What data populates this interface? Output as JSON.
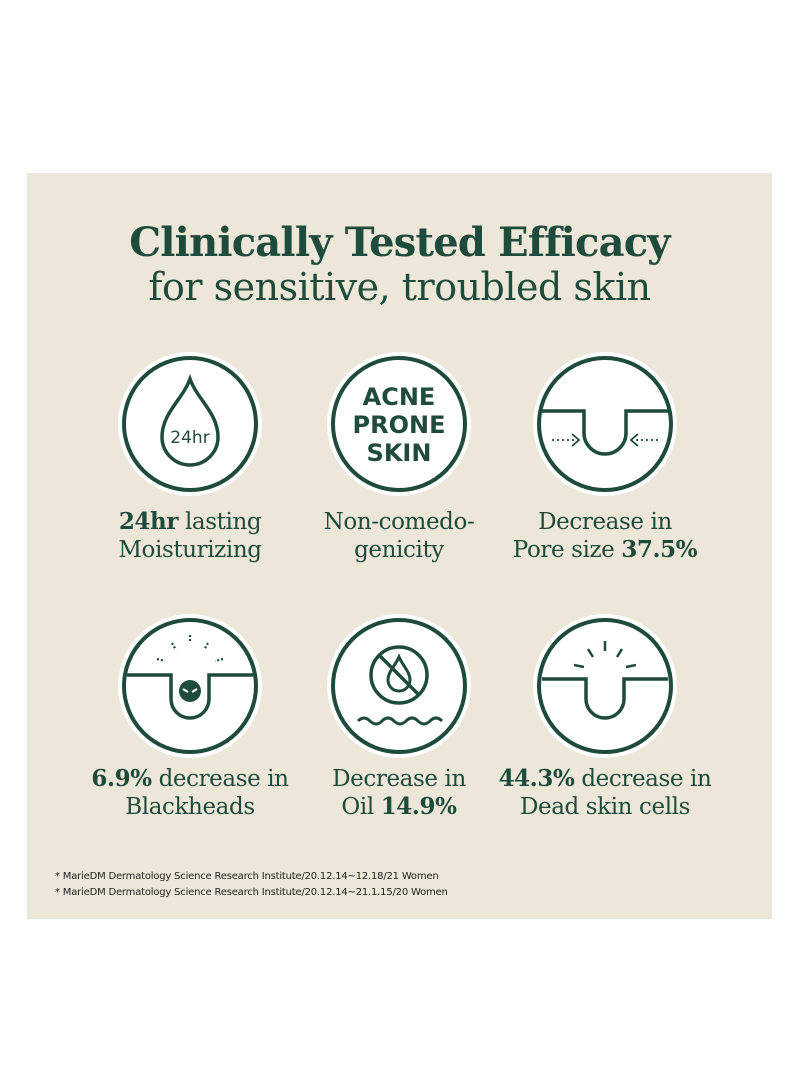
{
  "heading": {
    "line1": "Clinically Tested Efficacy",
    "line2": "for sensitive, troubled skin"
  },
  "colors": {
    "panel": "#ede7d9",
    "accent": "#1e4b3b",
    "icon_fill": "#ffffff"
  },
  "features": [
    {
      "icon": "water-drop-icon",
      "icon_text": "24hr",
      "caption_line1_bold": "24hr",
      "caption_line1_rest": " lasting",
      "caption_line2": "Moisturizing"
    },
    {
      "icon": "acne-prone-skin-icon",
      "icon_text": [
        "ACNE",
        "PRONE",
        "SKIN"
      ],
      "caption_line1": "Non-comedo-",
      "caption_line2": "genicity"
    },
    {
      "icon": "pore-shrink-icon",
      "caption_line1": "Decrease in",
      "caption_line2_rest": "Pore size ",
      "caption_line2_bold": "37.5%"
    },
    {
      "icon": "blackhead-icon",
      "caption_line1_bold": "6.9%",
      "caption_line1_rest": " decrease in",
      "caption_line2": "Blackheads"
    },
    {
      "icon": "no-oil-icon",
      "caption_line1": "Decrease in",
      "caption_line2_rest": "Oil ",
      "caption_line2_bold": "14.9%"
    },
    {
      "icon": "dead-skin-icon",
      "caption_line1_bold": "44.3%",
      "caption_line1_rest": " decrease in",
      "caption_line2": "Dead skin cells"
    }
  ],
  "footnotes": [
    "* MarieDM Dermatology Science Research Institute/20.12.14~12.18/21 Women",
    "* MarieDM Dermatology Science Research Institute/20.12.14~21.1.15/20 Women"
  ]
}
